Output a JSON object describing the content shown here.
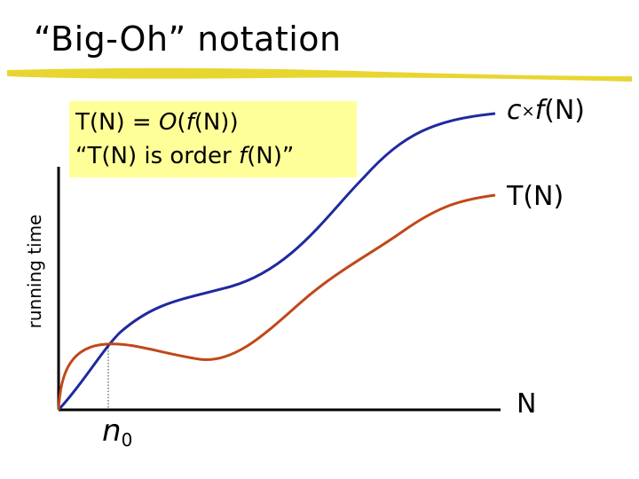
{
  "title": "“Big-Oh” notation",
  "callout": {
    "line1_prefix": "T(N) = ",
    "line1_o": "O",
    "line1_open": "(",
    "line1_f": "f",
    "line1_suffix": "(N))",
    "line2_prefix": "“T(N) is order ",
    "line2_f": "f",
    "line2_suffix": "(N)”"
  },
  "axis": {
    "ylabel": "running time",
    "xlabel": "N"
  },
  "curves": {
    "upper": {
      "c": "c",
      "times": "×",
      "f": "f",
      "arg": "(N)",
      "color": "#1f2a9e"
    },
    "lower": {
      "label": "T(N)",
      "color": "#c0481a"
    }
  },
  "marker": {
    "n": "n",
    "sub": "0"
  },
  "colors": {
    "title_rule": "#e5d21a",
    "callout_bg": "#ffff99",
    "axis": "#000000"
  }
}
